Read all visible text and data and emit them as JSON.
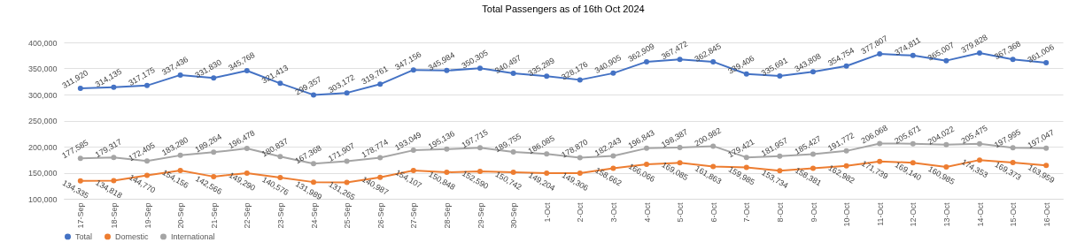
{
  "chart_data": {
    "type": "line",
    "title": "Total Passengers as of 16th Oct 2024",
    "categories": [
      "17-Sep",
      "18-Sep",
      "19-Sep",
      "20-Sep",
      "21-Sep",
      "22-Sep",
      "23-Sep",
      "24-Sep",
      "25-Sep",
      "26-Sep",
      "27-Sep",
      "28-Sep",
      "29-Sep",
      "30-Sep",
      "1-Oct",
      "2-Oct",
      "3-Oct",
      "4-Oct",
      "5-Oct",
      "6-Oct",
      "7-Oct",
      "8-Oct",
      "9-Oct",
      "10-Oct",
      "11-Oct",
      "12-Oct",
      "13-Oct",
      "14-Oct",
      "15-Oct",
      "16-Oct"
    ],
    "series": [
      {
        "name": "Total",
        "color": "#4472c4",
        "values": [
          311920,
          314135,
          317175,
          337436,
          331830,
          345768,
          321413,
          299357,
          303172,
          319761,
          347156,
          345984,
          350305,
          340497,
          335289,
          328176,
          340905,
          362909,
          367472,
          362845,
          339406,
          335691,
          343808,
          354754,
          377807,
          374811,
          365007,
          379828,
          367368,
          361006
        ],
        "value_labels": [
          "311,920",
          "314,135",
          "317,175",
          "337,436",
          "331,830",
          "345,768",
          "321,413",
          "299,357",
          "303,172",
          "319,761",
          "347,156",
          "345,984",
          "350,305",
          "340,497",
          "335,289",
          "328,176",
          "340,905",
          "362,909",
          "367,472",
          "362,845",
          "339,406",
          "335,691",
          "343,808",
          "354,754",
          "377,807",
          "374,811",
          "365,007",
          "379,828",
          "367,368",
          "361,006"
        ]
      },
      {
        "name": "Domestic",
        "color": "#ed7d31",
        "values": [
          134335,
          134818,
          144770,
          154156,
          142566,
          149290,
          140576,
          131989,
          131265,
          140987,
          154107,
          150848,
          152590,
          150742,
          149204,
          149306,
          158662,
          166066,
          169085,
          161863,
          159985,
          153734,
          158381,
          162982,
          171739,
          169140,
          160985,
          174353,
          169373,
          163959
        ],
        "value_labels": [
          "134,335",
          "134,818",
          "144,770",
          "154,156",
          "142,566",
          "149,290",
          "140,576",
          "131,989",
          "131,265",
          "140,987",
          "154,107",
          "150,848",
          "152,590",
          "150,742",
          "149,204",
          "149,306",
          "158,662",
          "166,066",
          "169,085",
          "161,863",
          "159,985",
          "153,734",
          "158,381",
          "162,982",
          "171,739",
          "169,140",
          "160,985",
          "174,353",
          "169,373",
          "163,959"
        ]
      },
      {
        "name": "International",
        "color": "#a5a5a5",
        "values": [
          177585,
          179317,
          172405,
          183280,
          189264,
          196478,
          180837,
          167368,
          171907,
          178774,
          193049,
          195136,
          197715,
          189755,
          186085,
          178870,
          182243,
          196843,
          198387,
          200982,
          179421,
          181957,
          185427,
          191772,
          206068,
          205671,
          204022,
          205475,
          197995,
          197047
        ],
        "value_labels": [
          "177,585",
          "179,317",
          "172,405",
          "183,280",
          "189,264",
          "196,478",
          "180,837",
          "167,368",
          "171,907",
          "178,774",
          "193,049",
          "195,136",
          "197,715",
          "189,755",
          "186,085",
          "178,870",
          "182,243",
          "196,843",
          "198,387",
          "200,982",
          "179,421",
          "181,957",
          "185,427",
          "191,772",
          "206,068",
          "205,671",
          "204,022",
          "205,475",
          "197,995",
          "197,047"
        ]
      }
    ],
    "ylim": [
      100000,
      400000
    ],
    "yticks": [
      {
        "value": 100000,
        "label": "100,000"
      },
      {
        "value": 150000,
        "label": "150,000"
      },
      {
        "value": 200000,
        "label": "200,000"
      },
      {
        "value": 250000,
        "label": "250,000"
      },
      {
        "value": 300000,
        "label": "300,000"
      },
      {
        "value": 350000,
        "label": "350,000"
      },
      {
        "value": 400000,
        "label": "400,000"
      }
    ],
    "grid": "y",
    "legend": "bottom",
    "marker": "circle",
    "line_style": "solid"
  }
}
